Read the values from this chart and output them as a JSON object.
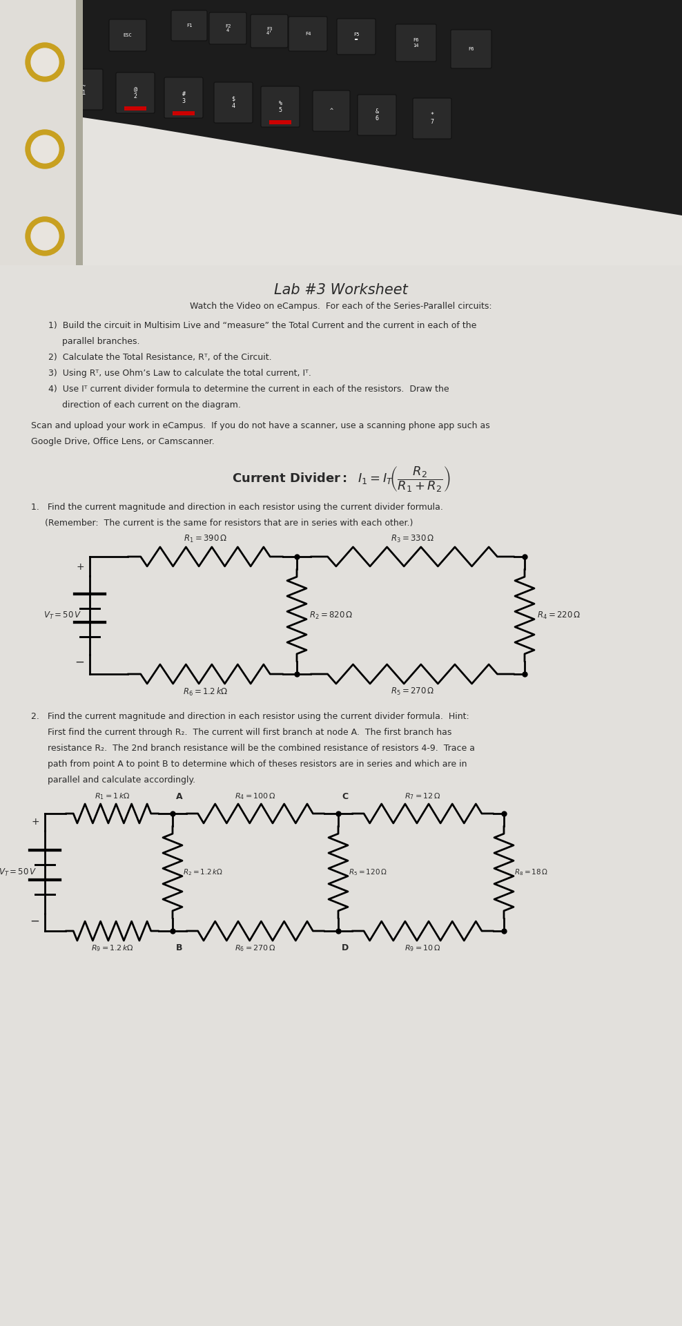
{
  "keyboard_bg": "#1c1c1c",
  "paper_bg": "#e8e6e2",
  "paper_bg2": "#d5d3cf",
  "text_color": "#2a2a2a",
  "title": "Lab #3 Worksheet",
  "subtitle": "Watch the Video on eCampus.  For each of the Series-Parallel circuits:",
  "instr1": "1)  Build the circuit in Multisim Live and “measure” the Total Current and the current in each of the",
  "instr1b": "     parallel branches.",
  "instr2": "2)  Calculate the Total Resistance, Rᵀ, of the Circuit.",
  "instr3": "3)  Using Rᵀ, use Ohm’s Law to calculate the total current, Iᵀ.",
  "instr4": "4)  Use Iᵀ current divider formula to determine the current in each of the resistors.  Draw the",
  "instr4b": "     direction of each current on the diagram.",
  "scan1": "Scan and upload your work in eCampus.  If you do not have a scanner, use a scanning phone app such as",
  "scan2": "Google Drive, Office Lens, or Camscanner.",
  "q1": "1.   Find the current magnitude and direction in each resistor using the current divider formula.",
  "q1b": "     (Remember:  The current is the same for resistors that are in series with each other.)",
  "q2": "2.   Find the current magnitude and direction in each resistor using the current divider formula.  Hint:",
  "q2b": "      First find the current through R₂.  The current will first branch at node A.  The first branch has",
  "q2c": "      resistance R₂.  The 2nd branch resistance will be the combined resistance of resistors 4-9.  Trace a",
  "q2d": "      path from point A to point B to determine which of theses resistors are in series and which are in",
  "q2e": "      parallel and calculate accordingly."
}
